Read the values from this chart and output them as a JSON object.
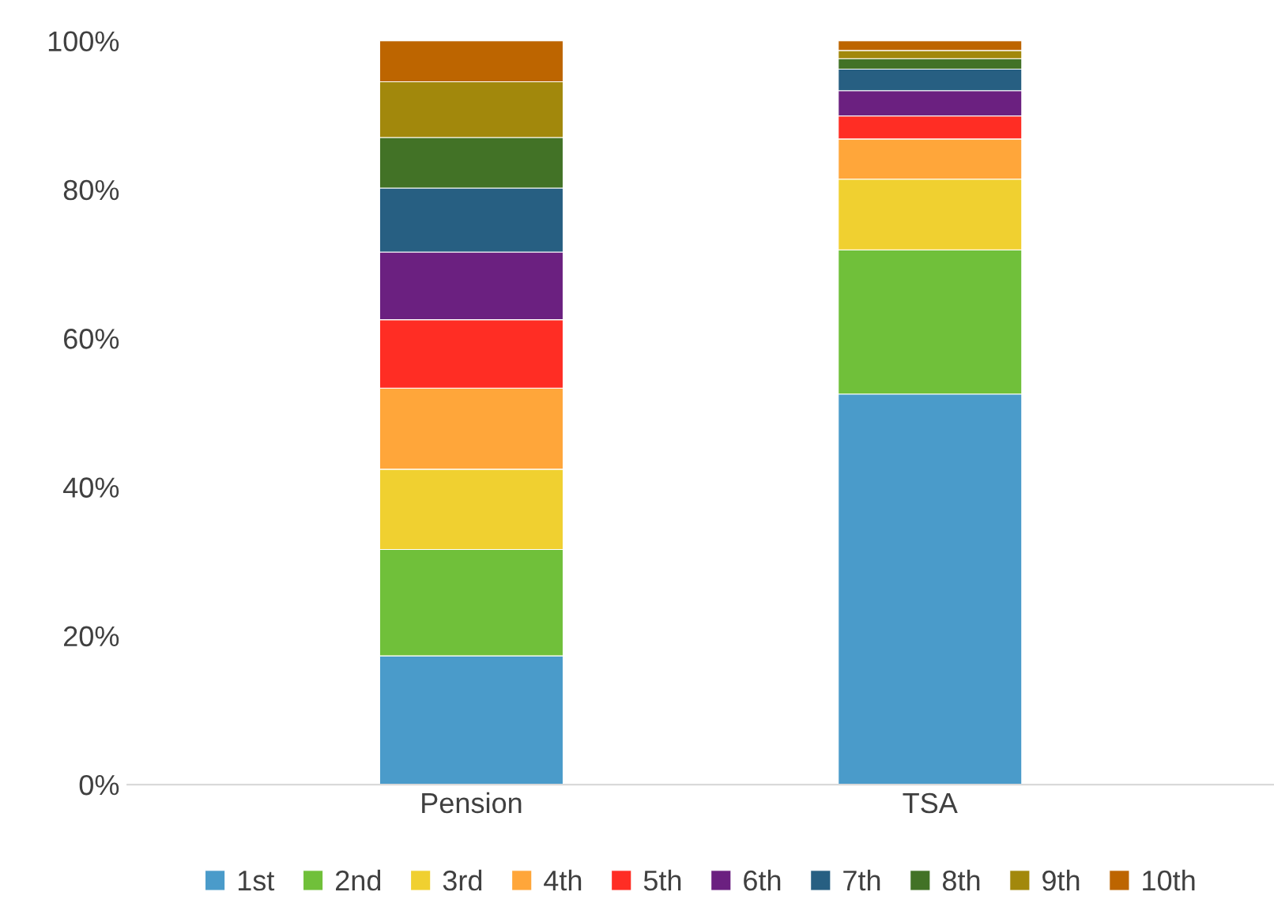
{
  "chart_data": {
    "type": "bar",
    "stacked": true,
    "categories": [
      "Pension",
      "TSA"
    ],
    "series": [
      {
        "name": "1st",
        "color": "#4a9bca",
        "values": [
          17.3,
          52.5
        ]
      },
      {
        "name": "2nd",
        "color": "#70c03a",
        "values": [
          14.3,
          19.4
        ]
      },
      {
        "name": "3rd",
        "color": "#f0d030",
        "values": [
          10.8,
          9.5
        ]
      },
      {
        "name": "4th",
        "color": "#ffa63a",
        "values": [
          10.9,
          5.4
        ]
      },
      {
        "name": "5th",
        "color": "#ff2d24",
        "values": [
          9.2,
          3.1
        ]
      },
      {
        "name": "6th",
        "color": "#6b2080",
        "values": [
          9.1,
          3.4
        ]
      },
      {
        "name": "7th",
        "color": "#275f82",
        "values": [
          8.6,
          2.9
        ]
      },
      {
        "name": "8th",
        "color": "#427226",
        "values": [
          6.8,
          1.4
        ]
      },
      {
        "name": "9th",
        "color": "#a2880c",
        "values": [
          7.5,
          1.1
        ]
      },
      {
        "name": "10th",
        "color": "#bd6500",
        "values": [
          5.5,
          1.3
        ]
      }
    ],
    "ylim": [
      0,
      100
    ],
    "yticks": [
      {
        "value": 0,
        "label": "0%"
      },
      {
        "value": 20,
        "label": "20%"
      },
      {
        "value": 40,
        "label": "40%"
      },
      {
        "value": 60,
        "label": "60%"
      },
      {
        "value": 80,
        "label": "80%"
      },
      {
        "value": 100,
        "label": "100%"
      }
    ],
    "legend": "bottom",
    "grid": false
  }
}
